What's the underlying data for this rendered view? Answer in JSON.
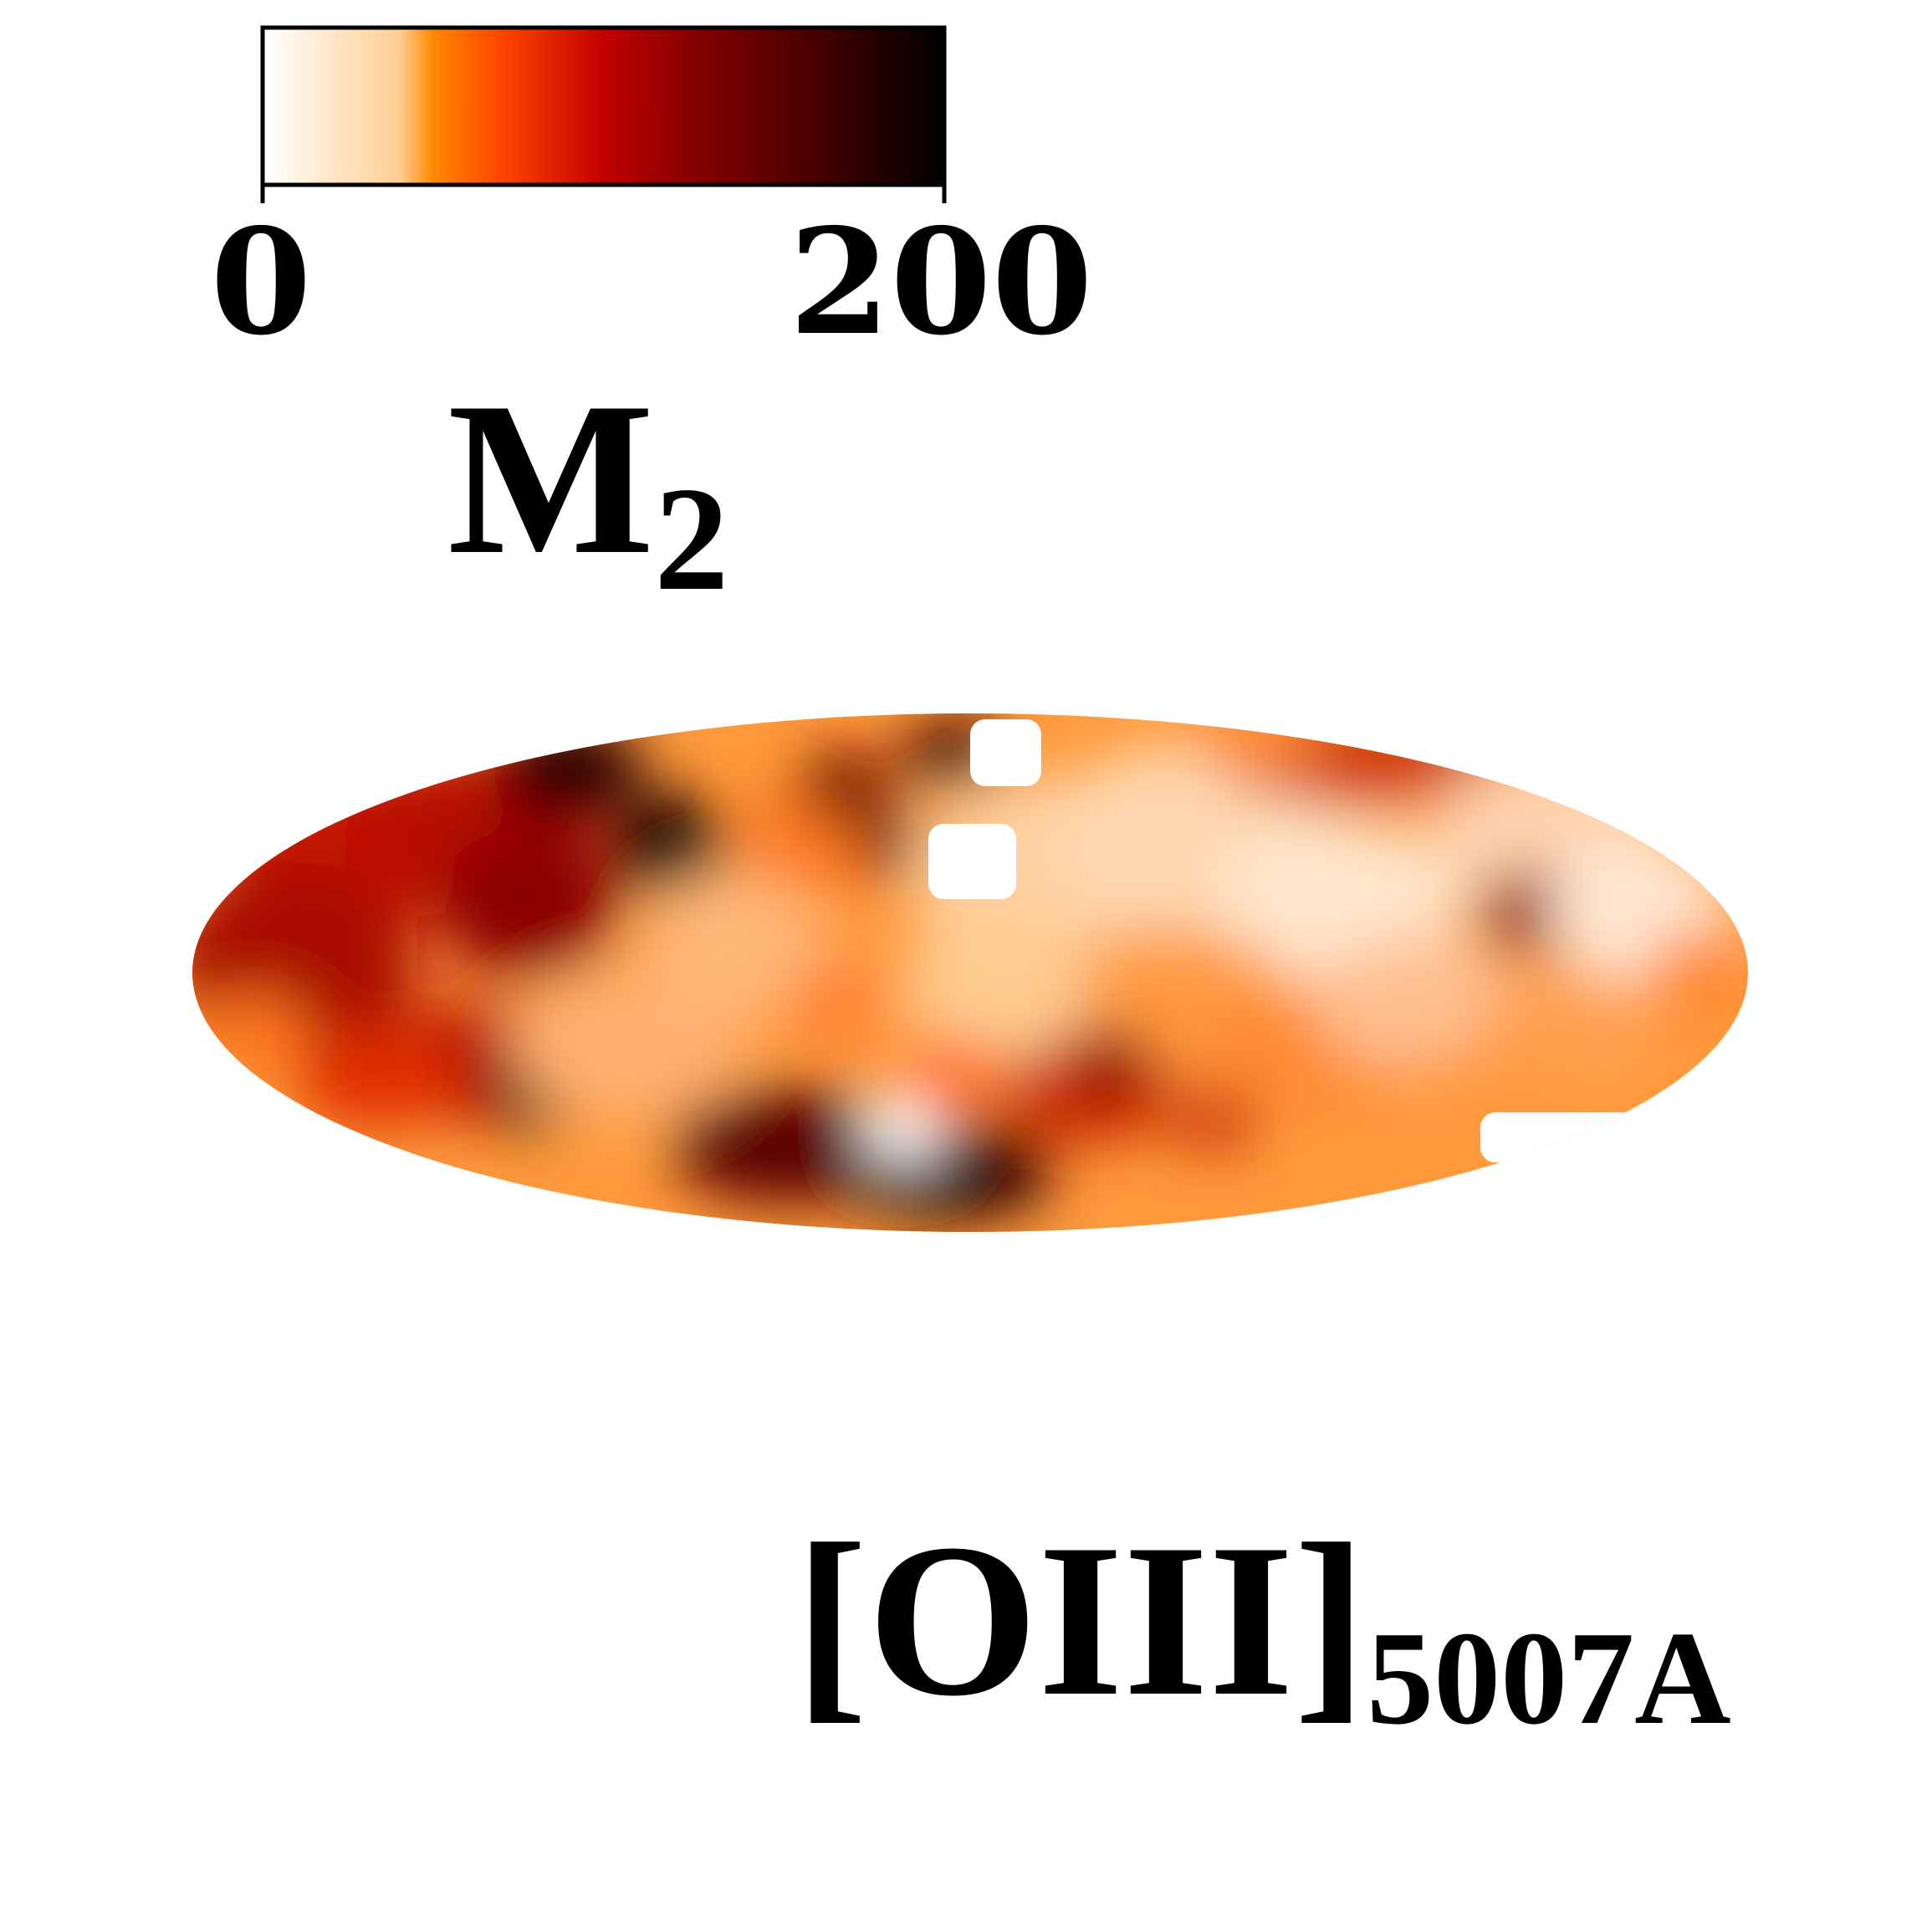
{
  "chart_data": {
    "type": "heatmap",
    "projection": "mollweide",
    "colormap": "gist_heat_r",
    "colorbar": {
      "min": 0,
      "max": 200,
      "tick_labels": [
        "0",
        "200"
      ],
      "label_main": "M",
      "label_sub": "2",
      "stops": [
        "#ffffff",
        "#ffcf94",
        "#ff8800",
        "#ff4500",
        "#c20000",
        "#8a0000",
        "#4a0000",
        "#000000"
      ]
    },
    "map": {
      "grid": false,
      "masked_color": "#ffffff",
      "min": 0,
      "max": 200
    },
    "annotation": {
      "main": "[OIII]",
      "sub": "5007A"
    }
  }
}
